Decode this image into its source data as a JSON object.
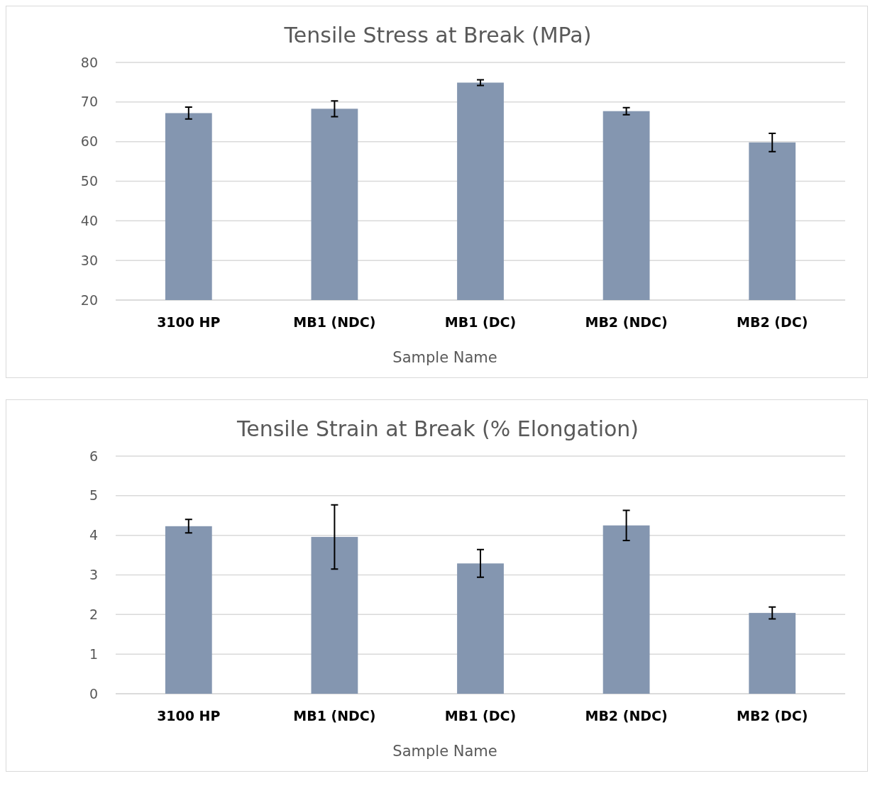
{
  "chart_data": [
    {
      "type": "bar",
      "title": "Tensile Stress at Break (MPa)",
      "xlabel": "Sample Name",
      "categories": [
        "3100 HP",
        "MB1 (NDC)",
        "MB1 (DC)",
        "MB2 (NDC)",
        "MB2 (DC)"
      ],
      "values": [
        67.2,
        68.3,
        74.9,
        67.7,
        59.8
      ],
      "errors": [
        1.5,
        2,
        0.7,
        0.9,
        2.3
      ],
      "color": "#8496b0",
      "ylim": [
        20,
        80
      ],
      "yticks": [
        20,
        30,
        40,
        50,
        60,
        70,
        80
      ],
      "grid": "y"
    },
    {
      "type": "bar",
      "title": "Tensile Strain at Break (% Elongation)",
      "xlabel": "Sample Name",
      "categories": [
        "3100 HP",
        "MB1 (NDC)",
        "MB1 (DC)",
        "MB2 (NDC)",
        "MB2 (DC)"
      ],
      "values": [
        4.23,
        3.96,
        3.29,
        4.25,
        2.04
      ],
      "errors": [
        0.17,
        0.81,
        0.35,
        0.38,
        0.15
      ],
      "color": "#8496b0",
      "ylim": [
        0,
        6
      ],
      "yticks": [
        0,
        1,
        2,
        3,
        4,
        5,
        6
      ],
      "grid": "y"
    }
  ]
}
